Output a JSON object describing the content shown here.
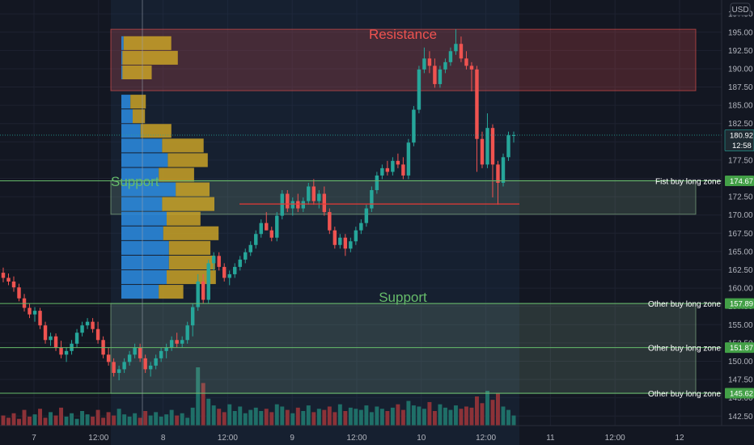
{
  "currency": "USD",
  "colors": {
    "background": "#131722",
    "grid": "#1e2230",
    "bull": "#26a69a",
    "bear": "#ef5350",
    "volume_bull": "#1f6f68",
    "volume_bear": "#8c3238",
    "resistance": "#ef5350",
    "support": "#66bb6a",
    "vp_blue": "#2a86d9",
    "vp_gold": "#c9a227",
    "poc": "#e53935"
  },
  "annotations": {
    "resistance": "Resistance",
    "support_upper": "Support",
    "support_lower": "Support"
  },
  "chart_data": {
    "type": "candlestick",
    "title": "",
    "y_range": [
      141.2,
      199.4
    ],
    "x_labels": [
      "7",
      "12:00",
      "8",
      "12:00",
      "9",
      "12:00",
      "10",
      "12:00",
      "11",
      "12:00",
      "12"
    ],
    "y_ticks": [
      142.5,
      145.0,
      147.5,
      150.0,
      152.5,
      155.0,
      157.5,
      160.0,
      162.5,
      165.0,
      167.5,
      170.0,
      172.5,
      175.0,
      177.5,
      180.0,
      182.5,
      185.0,
      187.5,
      190.0,
      192.5,
      195.0,
      197.5
    ],
    "y_tick_labels": [
      "142.50",
      "145.00",
      "147.50",
      "150.00",
      "152.50",
      "155.00",
      "157.50",
      "160.00",
      "162.50",
      "165.00",
      "167.50",
      "170.00",
      "172.50",
      "175.00",
      "177.50",
      "180.00",
      "182.50",
      "185.00",
      "187.50",
      "190.00",
      "192.50",
      "195.00",
      "197.50"
    ],
    "last_price": {
      "value": 180.92,
      "label": "180.92",
      "countdown": "12:58"
    },
    "horizontal_levels": [
      {
        "value": 174.67,
        "label": "174.67",
        "zone_text": "Fist buy long zone"
      },
      {
        "value": 157.89,
        "label": "157.89",
        "zone_text": "Other buy long zone"
      },
      {
        "value": 151.87,
        "label": "151.87",
        "zone_text": "Other buy long zone"
      },
      {
        "value": 145.62,
        "label": "145.62",
        "zone_text": "Other buy long zone"
      }
    ],
    "zones": [
      {
        "name": "resistance",
        "from": 187.0,
        "to": 195.4
      },
      {
        "name": "support-upper",
        "from": 170.1,
        "to": 174.7
      },
      {
        "name": "support-lower",
        "from": 145.6,
        "to": 157.9
      }
    ],
    "poc_level": 171.5,
    "candles": [
      [
        162.1,
        162.8,
        160.8,
        161.4
      ],
      [
        161.4,
        162.0,
        160.4,
        160.9
      ],
      [
        160.9,
        161.6,
        159.5,
        160.1
      ],
      [
        160.1,
        160.6,
        158.2,
        158.6
      ],
      [
        158.6,
        159.2,
        156.8,
        157.3
      ],
      [
        157.3,
        157.9,
        155.9,
        156.4
      ],
      [
        156.4,
        157.4,
        155.4,
        156.9
      ],
      [
        156.9,
        157.3,
        154.4,
        154.9
      ],
      [
        154.9,
        155.4,
        152.4,
        152.9
      ],
      [
        152.9,
        153.9,
        152.1,
        153.4
      ],
      [
        153.4,
        153.8,
        151.4,
        151.9
      ],
      [
        151.9,
        152.8,
        150.4,
        150.9
      ],
      [
        150.9,
        151.9,
        149.9,
        151.4
      ],
      [
        151.4,
        152.9,
        150.9,
        152.4
      ],
      [
        152.4,
        154.4,
        151.9,
        153.9
      ],
      [
        153.9,
        155.4,
        153.4,
        154.9
      ],
      [
        154.9,
        155.9,
        154.4,
        155.4
      ],
      [
        155.4,
        155.9,
        153.9,
        154.4
      ],
      [
        154.4,
        155.4,
        152.4,
        152.9
      ],
      [
        152.9,
        153.4,
        150.4,
        150.9
      ],
      [
        150.9,
        151.9,
        149.4,
        149.9
      ],
      [
        149.9,
        150.4,
        147.9,
        148.4
      ],
      [
        148.4,
        149.4,
        147.4,
        148.9
      ],
      [
        148.9,
        150.4,
        148.4,
        149.9
      ],
      [
        149.9,
        151.4,
        149.4,
        150.9
      ],
      [
        150.9,
        152.4,
        150.4,
        151.9
      ],
      [
        151.9,
        152.4,
        149.9,
        150.4
      ],
      [
        150.4,
        150.9,
        148.4,
        148.9
      ],
      [
        148.9,
        149.9,
        147.9,
        149.4
      ],
      [
        149.4,
        150.9,
        148.9,
        150.4
      ],
      [
        150.4,
        151.9,
        149.9,
        151.4
      ],
      [
        151.4,
        152.4,
        150.4,
        151.9
      ],
      [
        151.9,
        153.4,
        151.4,
        152.9
      ],
      [
        152.9,
        153.9,
        151.9,
        152.4
      ],
      [
        152.4,
        153.4,
        151.9,
        152.9
      ],
      [
        152.9,
        155.4,
        152.4,
        154.9
      ],
      [
        154.9,
        157.9,
        153.4,
        157.4
      ],
      [
        157.4,
        161.9,
        156.9,
        160.9
      ],
      [
        160.9,
        161.9,
        157.9,
        158.4
      ],
      [
        158.4,
        163.9,
        157.9,
        163.4
      ],
      [
        163.4,
        164.9,
        162.4,
        164.4
      ],
      [
        164.4,
        164.9,
        162.4,
        162.9
      ],
      [
        162.9,
        163.4,
        160.9,
        161.4
      ],
      [
        161.4,
        162.4,
        160.4,
        161.9
      ],
      [
        161.9,
        163.4,
        161.4,
        162.9
      ],
      [
        162.9,
        164.4,
        162.4,
        163.9
      ],
      [
        163.9,
        165.4,
        163.4,
        164.9
      ],
      [
        164.9,
        166.4,
        164.4,
        165.9
      ],
      [
        165.9,
        167.9,
        165.4,
        167.4
      ],
      [
        167.4,
        169.4,
        166.9,
        168.9
      ],
      [
        168.9,
        170.4,
        167.9,
        167.9
      ],
      [
        167.9,
        168.4,
        166.4,
        166.9
      ],
      [
        166.9,
        170.4,
        166.4,
        169.9
      ],
      [
        169.9,
        173.4,
        169.4,
        172.9
      ],
      [
        172.9,
        173.4,
        170.4,
        170.9
      ],
      [
        170.9,
        172.4,
        169.9,
        171.9
      ],
      [
        171.9,
        172.9,
        170.4,
        170.9
      ],
      [
        170.9,
        172.4,
        170.4,
        171.9
      ],
      [
        171.9,
        174.4,
        171.4,
        173.9
      ],
      [
        173.9,
        174.9,
        171.4,
        171.9
      ],
      [
        171.9,
        173.4,
        170.9,
        172.9
      ],
      [
        172.9,
        173.9,
        169.9,
        170.4
      ],
      [
        170.4,
        170.9,
        167.4,
        167.9
      ],
      [
        167.9,
        168.4,
        165.4,
        165.9
      ],
      [
        165.9,
        167.4,
        165.4,
        166.9
      ],
      [
        166.9,
        167.4,
        164.4,
        165.4
      ],
      [
        165.4,
        166.9,
        164.9,
        166.4
      ],
      [
        166.4,
        168.4,
        165.9,
        167.9
      ],
      [
        167.9,
        169.4,
        167.4,
        168.9
      ],
      [
        168.9,
        171.4,
        168.4,
        170.9
      ],
      [
        170.9,
        173.9,
        170.4,
        173.4
      ],
      [
        173.4,
        175.9,
        172.9,
        175.4
      ],
      [
        175.4,
        176.9,
        174.9,
        176.4
      ],
      [
        176.4,
        177.4,
        175.4,
        175.9
      ],
      [
        175.9,
        177.9,
        175.4,
        177.4
      ],
      [
        177.4,
        178.4,
        176.4,
        176.9
      ],
      [
        176.9,
        177.9,
        174.9,
        175.4
      ],
      [
        175.4,
        180.4,
        174.9,
        179.9
      ],
      [
        179.9,
        184.9,
        179.4,
        184.4
      ],
      [
        184.4,
        190.4,
        183.9,
        189.9
      ],
      [
        189.9,
        192.9,
        189.4,
        191.4
      ],
      [
        191.4,
        192.4,
        189.4,
        190.4
      ],
      [
        190.4,
        191.4,
        187.4,
        187.9
      ],
      [
        187.9,
        190.4,
        187.4,
        189.9
      ],
      [
        189.9,
        191.4,
        189.4,
        190.9
      ],
      [
        190.9,
        192.9,
        190.4,
        192.4
      ],
      [
        192.4,
        195.4,
        191.9,
        193.4
      ],
      [
        193.4,
        194.4,
        190.9,
        191.4
      ],
      [
        191.4,
        192.4,
        189.9,
        190.4
      ],
      [
        190.4,
        190.9,
        186.9,
        189.9
      ],
      [
        189.9,
        190.4,
        175.9,
        180.4
      ],
      [
        180.4,
        181.4,
        176.4,
        176.9
      ],
      [
        176.9,
        183.9,
        176.4,
        181.9
      ],
      [
        181.9,
        182.4,
        172.4,
        176.9
      ],
      [
        176.9,
        177.4,
        171.4,
        174.4
      ],
      [
        174.4,
        178.4,
        173.9,
        177.9
      ],
      [
        177.9,
        181.4,
        177.4,
        180.9
      ],
      [
        180.9,
        181.4,
        179.9,
        180.92
      ]
    ],
    "volumes": [
      9,
      7,
      11,
      6,
      14,
      8,
      10,
      15,
      7,
      12,
      9,
      16,
      8,
      11,
      6,
      13,
      10,
      8,
      14,
      7,
      12,
      9,
      15,
      10,
      8,
      11,
      7,
      13,
      9,
      12,
      8,
      10,
      14,
      9,
      11,
      7,
      16,
      52,
      38,
      24,
      18,
      15,
      12,
      19,
      13,
      17,
      11,
      14,
      16,
      13,
      15,
      12,
      19,
      17,
      14,
      11,
      16,
      13,
      18,
      12,
      15,
      14,
      17,
      12,
      19,
      13,
      16,
      15,
      14,
      18,
      12,
      17,
      15,
      13,
      16,
      19,
      14,
      22,
      18,
      17,
      15,
      21,
      13,
      19,
      16,
      14,
      18,
      15,
      17,
      16,
      26,
      20,
      31,
      23,
      29,
      17,
      14,
      9
    ],
    "volume_profile": [
      {
        "price": 193.5,
        "blue": 2,
        "gold": 31
      },
      {
        "price": 191.5,
        "blue": 1,
        "gold": 36
      },
      {
        "price": 189.5,
        "blue": 1,
        "gold": 19
      },
      {
        "price": 185.5,
        "blue": 8,
        "gold": 10
      },
      {
        "price": 183.5,
        "blue": 10,
        "gold": 8
      },
      {
        "price": 181.5,
        "blue": 17,
        "gold": 20
      },
      {
        "price": 179.5,
        "blue": 36,
        "gold": 27
      },
      {
        "price": 177.5,
        "blue": 41,
        "gold": 26
      },
      {
        "price": 175.5,
        "blue": 33,
        "gold": 23
      },
      {
        "price": 173.5,
        "blue": 48,
        "gold": 22
      },
      {
        "price": 171.5,
        "blue": 36,
        "gold": 34
      },
      {
        "price": 169.5,
        "blue": 40,
        "gold": 22
      },
      {
        "price": 167.5,
        "blue": 37,
        "gold": 36
      },
      {
        "price": 165.5,
        "blue": 42,
        "gold": 27
      },
      {
        "price": 163.5,
        "blue": 42,
        "gold": 30
      },
      {
        "price": 161.5,
        "blue": 40,
        "gold": 32
      },
      {
        "price": 159.5,
        "blue": 33,
        "gold": 16
      }
    ]
  }
}
